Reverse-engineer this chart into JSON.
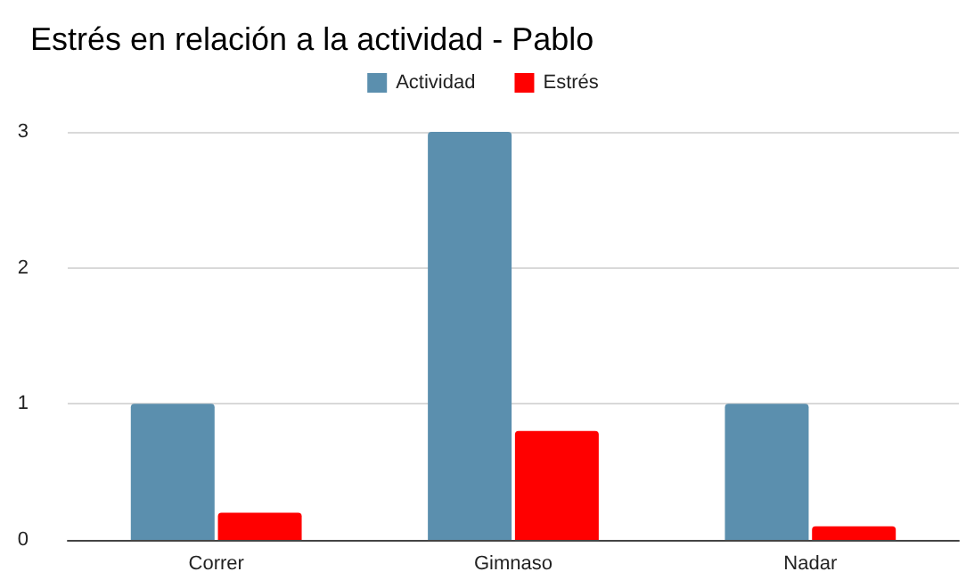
{
  "chart_data": {
    "type": "bar",
    "title": "Estrés en relación a la actividad - Pablo",
    "categories": [
      "Correr",
      "Gimnaso",
      "Nadar"
    ],
    "series": [
      {
        "name": "Actividad",
        "color": "#5b8fae",
        "values": [
          1,
          3,
          1
        ]
      },
      {
        "name": "Estrés",
        "color": "#ff0000",
        "values": [
          0.2,
          0.8,
          0.1
        ]
      }
    ],
    "ylim": [
      0,
      3
    ],
    "yticks": [
      0,
      1,
      2,
      3
    ],
    "grid": "y",
    "legend": "top"
  }
}
